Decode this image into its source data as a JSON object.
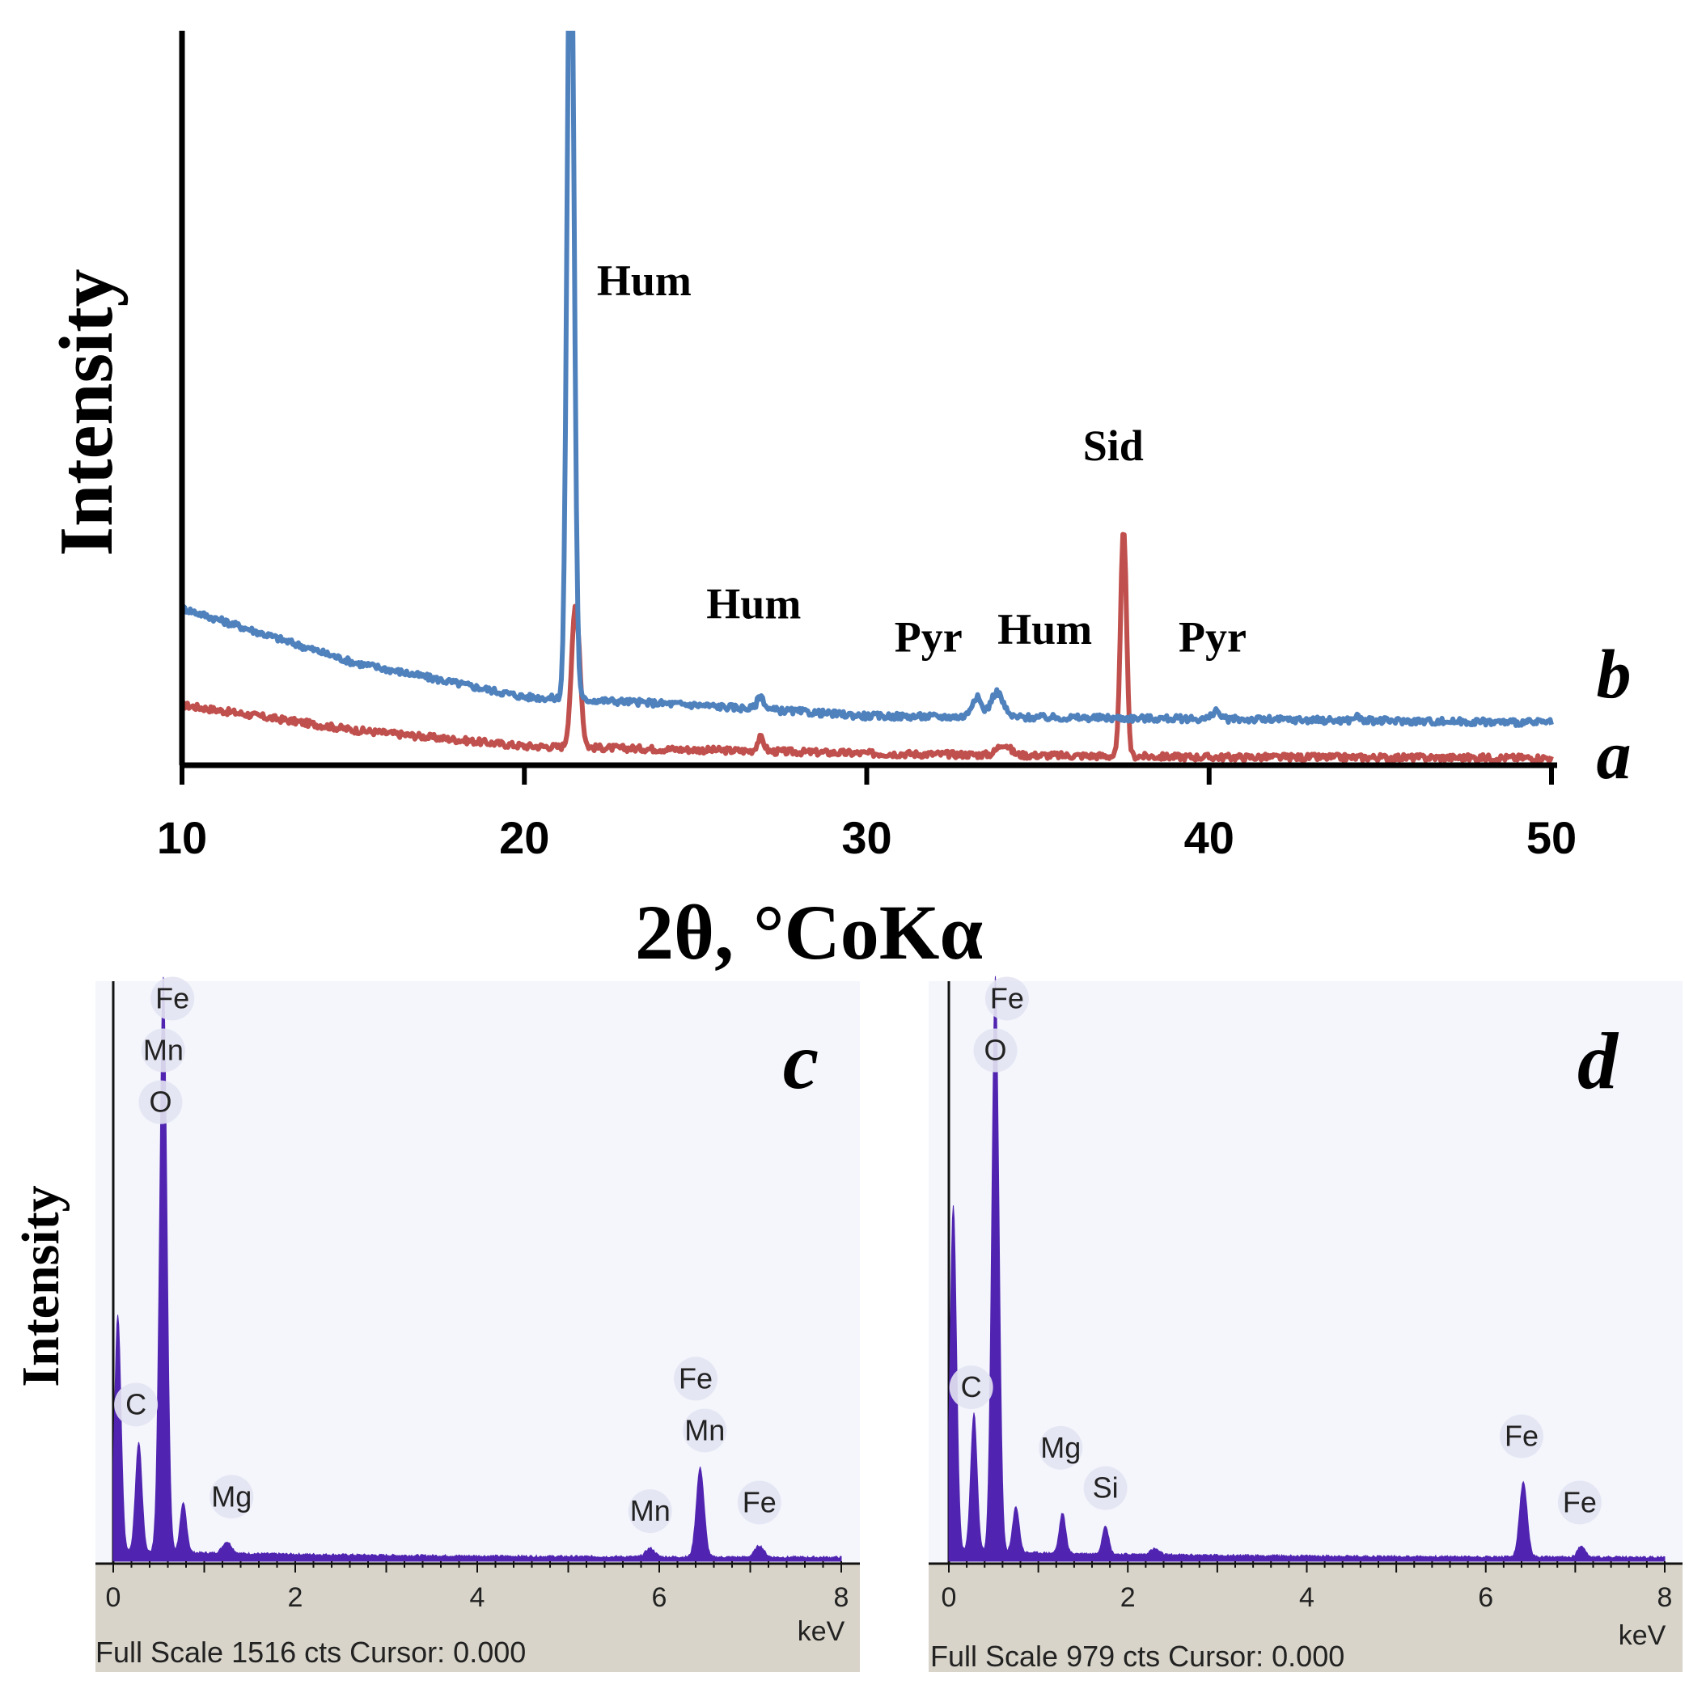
{
  "colors": {
    "series_a": "#c0504d",
    "series_b": "#4f81bd",
    "eds_fill": "#5024b0",
    "eds_bg": "#f4f6fc",
    "eds_footer": "#d8d4c9",
    "axis": "#000000"
  },
  "chart_data": [
    {
      "type": "line",
      "panel": "top",
      "title": "",
      "xlabel": "2θ, °CoKα",
      "ylabel": "Intensity",
      "xlim": [
        10,
        50
      ],
      "ylim": [
        0,
        100
      ],
      "xticks": [
        "10",
        "20",
        "30",
        "40",
        "50"
      ],
      "series": [
        {
          "name": "a",
          "baseline": [
            [
              10,
              8.2
            ],
            [
              15,
              4.8
            ],
            [
              20,
              2.6
            ],
            [
              30,
              1.6
            ],
            [
              40,
              1.1
            ],
            [
              50,
              1.0
            ]
          ],
          "peaks": [
            {
              "x": 21.5,
              "height": 19.4,
              "width": 0.17
            },
            {
              "x": 26.9,
              "height": 1.8,
              "width": 0.14
            },
            {
              "x": 34.0,
              "height": 1.5,
              "width": 0.25
            },
            {
              "x": 37.5,
              "height": 31.4,
              "width": 0.12
            }
          ]
        },
        {
          "name": "b",
          "baseline": [
            [
              10,
              21.4
            ],
            [
              15,
              14.0
            ],
            [
              20,
              9.3
            ],
            [
              25,
              8.2
            ],
            [
              30,
              6.7
            ],
            [
              40,
              6.3
            ],
            [
              50,
              5.8
            ]
          ],
          "peaks": [
            {
              "x": 21.35,
              "height": 115,
              "width": 0.14
            },
            {
              "x": 26.9,
              "height": 1.8,
              "width": 0.14
            },
            {
              "x": 33.2,
              "height": 2.7,
              "width": 0.2
            },
            {
              "x": 33.8,
              "height": 3.4,
              "width": 0.25
            },
            {
              "x": 40.2,
              "height": 1.2,
              "width": 0.14
            },
            {
              "x": 44.3,
              "height": 0.6,
              "width": 0.12
            }
          ]
        }
      ],
      "annotations": [
        {
          "text": "Hum",
          "x": 23.5,
          "y": 64
        },
        {
          "text": "Hum",
          "x": 26.7,
          "y": 20
        },
        {
          "text": "Pyr",
          "x": 31.8,
          "y": 15.5
        },
        {
          "text": "Hum",
          "x": 35.2,
          "y": 16.5
        },
        {
          "text": "Sid",
          "x": 37.2,
          "y": 41.5
        },
        {
          "text": "Pyr",
          "x": 40.1,
          "y": 15.5
        }
      ],
      "series_labels": [
        "a",
        "b"
      ]
    },
    {
      "type": "area",
      "panel": "c",
      "panel_label": "c",
      "ylabel": "Intensity",
      "xlabel": "keV",
      "xlim": [
        0,
        8
      ],
      "xticks": [
        "0",
        "2",
        "4",
        "6",
        "8"
      ],
      "footer": "Full Scale 1516 cts Cursor: 0.000",
      "peaks": [
        {
          "x": 0.05,
          "height": 0.41,
          "width": 0.05
        },
        {
          "x": 0.28,
          "height": 0.19,
          "width": 0.05
        },
        {
          "x": 0.55,
          "height": 1.0,
          "width": 0.055
        },
        {
          "x": 0.77,
          "height": 0.085,
          "width": 0.05
        },
        {
          "x": 1.25,
          "height": 0.02,
          "width": 0.07
        },
        {
          "x": 5.9,
          "height": 0.015,
          "width": 0.07
        },
        {
          "x": 6.45,
          "height": 0.155,
          "width": 0.06
        },
        {
          "x": 7.1,
          "height": 0.02,
          "width": 0.07
        }
      ],
      "labels": [
        {
          "text": "Fe",
          "x": 0.65,
          "y": 0.96
        },
        {
          "text": "Mn",
          "x": 0.55,
          "y": 0.87
        },
        {
          "text": "O",
          "x": 0.52,
          "y": 0.78
        },
        {
          "text": "C",
          "x": 0.25,
          "y": 0.255
        },
        {
          "text": "Mg",
          "x": 1.3,
          "y": 0.095
        },
        {
          "text": "Mn",
          "x": 5.9,
          "y": 0.07
        },
        {
          "text": "Fe",
          "x": 6.4,
          "y": 0.3
        },
        {
          "text": "Mn",
          "x": 6.5,
          "y": 0.21
        },
        {
          "text": "Fe",
          "x": 7.1,
          "y": 0.085
        }
      ]
    },
    {
      "type": "area",
      "panel": "d",
      "panel_label": "d",
      "xlabel": "keV",
      "xlim": [
        0,
        8
      ],
      "xticks": [
        "0",
        "2",
        "4",
        "6",
        "8"
      ],
      "footer": "Full Scale 979 cts Cursor: 0.000",
      "peaks": [
        {
          "x": 0.05,
          "height": 0.6,
          "width": 0.05
        },
        {
          "x": 0.28,
          "height": 0.24,
          "width": 0.05
        },
        {
          "x": 0.52,
          "height": 1.0,
          "width": 0.055
        },
        {
          "x": 0.75,
          "height": 0.08,
          "width": 0.05
        },
        {
          "x": 1.27,
          "height": 0.07,
          "width": 0.05
        },
        {
          "x": 1.75,
          "height": 0.05,
          "width": 0.05
        },
        {
          "x": 2.3,
          "height": 0.01,
          "width": 0.07
        },
        {
          "x": 6.42,
          "height": 0.13,
          "width": 0.06
        },
        {
          "x": 7.07,
          "height": 0.02,
          "width": 0.06
        }
      ],
      "labels": [
        {
          "text": "Fe",
          "x": 0.65,
          "y": 0.96
        },
        {
          "text": "O",
          "x": 0.52,
          "y": 0.87
        },
        {
          "text": "C",
          "x": 0.25,
          "y": 0.285
        },
        {
          "text": "Mg",
          "x": 1.25,
          "y": 0.18
        },
        {
          "text": "Si",
          "x": 1.75,
          "y": 0.11
        },
        {
          "text": "Fe",
          "x": 6.4,
          "y": 0.2
        },
        {
          "text": "Fe",
          "x": 7.05,
          "y": 0.085
        }
      ]
    }
  ]
}
